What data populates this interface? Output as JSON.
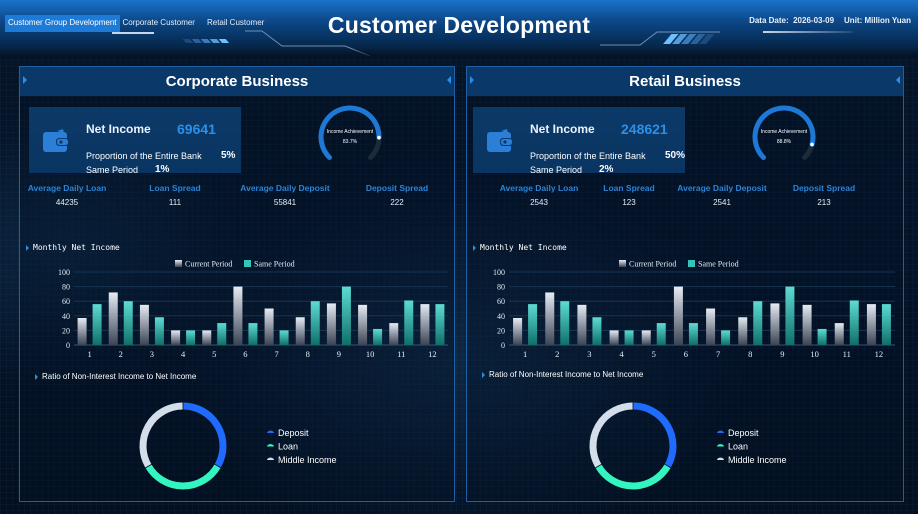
{
  "header": {
    "nav": [
      {
        "label": "Customer Group Development",
        "active": true
      },
      {
        "label": "Corporate Customer",
        "active": false
      },
      {
        "label": "Retail Customer",
        "active": false
      }
    ],
    "title": "Customer Development",
    "data_date_label": "Data Date:",
    "data_date": "2026-03-09",
    "unit": "Unit: Million Yuan"
  },
  "colors": {
    "accent_blue": "#2d8fe6",
    "panel_header": "#0a3868",
    "current_period": "#c9d1de",
    "same_period": "#35c4b8",
    "deposit": "#1f6bff",
    "loan": "#33f5c0",
    "middle_income": "#d4ddea"
  },
  "panels": [
    {
      "title": "Corporate Business",
      "net_income_label": "Net Income",
      "net_income_value": "69641",
      "proportion_label": "Proportion of the Entire Bank",
      "proportion_value": "5%",
      "same_period_label": "Same Period",
      "same_period_value": "1%",
      "gauge_label": "Income Achievement",
      "gauge_value": "83.7%",
      "stats": [
        {
          "label": "Average Daily Loan",
          "value": "44235"
        },
        {
          "label": "Loan Spread",
          "value": "111"
        },
        {
          "label": "Average Daily Deposit",
          "value": "55841"
        },
        {
          "label": "Deposit Spread",
          "value": "222"
        }
      ],
      "monthly_title": "Monthly Net Income",
      "ratio_title": "Ratio of Non-Interest Income to Net Income"
    },
    {
      "title": "Retail Business",
      "net_income_label": "Net Income",
      "net_income_value": "248621",
      "proportion_label": "Proportion of the Entire Bank",
      "proportion_value": "50%",
      "same_period_label": "Same Period",
      "same_period_value": "2%",
      "gauge_label": "Income Achievement",
      "gauge_value": "88.8%",
      "stats": [
        {
          "label": "Average Daily Loan",
          "value": "2543"
        },
        {
          "label": "Loan Spread",
          "value": "123"
        },
        {
          "label": "Average Daily Deposit",
          "value": "2541"
        },
        {
          "label": "Deposit Spread",
          "value": "213"
        }
      ],
      "monthly_title": "Monthly Net Income",
      "ratio_title": "Ratio of Non-Interest Income to Net Income"
    }
  ],
  "chart_data": [
    {
      "type": "bar",
      "title": "Monthly Net Income (Corporate Business)",
      "categories": [
        "1",
        "2",
        "3",
        "4",
        "5",
        "6",
        "7",
        "8",
        "9",
        "10",
        "11",
        "12"
      ],
      "series": [
        {
          "name": "Current Period",
          "values": [
            37,
            72,
            55,
            20,
            20,
            80,
            50,
            38,
            57,
            55,
            30,
            56
          ]
        },
        {
          "name": "Same Period",
          "values": [
            56,
            60,
            38,
            20,
            30,
            30,
            20,
            60,
            80,
            22,
            61,
            56
          ]
        }
      ],
      "ylim": [
        0,
        100
      ],
      "yticks": [
        0,
        20,
        40,
        60,
        80,
        100
      ],
      "legend_position": "top",
      "grid": true
    },
    {
      "type": "pie",
      "title": "Ratio of Non-Interest Income to Net Income (Corporate Business)",
      "labels": [
        "Deposit",
        "Loan",
        "Middle Income"
      ],
      "values": [
        33.3,
        33.3,
        33.4
      ],
      "donut": true,
      "legend_position": "right"
    },
    {
      "type": "bar",
      "title": "Monthly Net Income (Retail Business)",
      "categories": [
        "1",
        "2",
        "3",
        "4",
        "5",
        "6",
        "7",
        "8",
        "9",
        "10",
        "11",
        "12"
      ],
      "series": [
        {
          "name": "Current Period",
          "values": [
            37,
            72,
            55,
            20,
            20,
            80,
            50,
            38,
            57,
            55,
            30,
            56
          ]
        },
        {
          "name": "Same Period",
          "values": [
            56,
            60,
            38,
            20,
            30,
            30,
            20,
            60,
            80,
            22,
            61,
            56
          ]
        }
      ],
      "ylim": [
        0,
        100
      ],
      "yticks": [
        0,
        20,
        40,
        60,
        80,
        100
      ],
      "legend_position": "top",
      "grid": true
    },
    {
      "type": "pie",
      "title": "Ratio of Non-Interest Income to Net Income (Retail Business)",
      "labels": [
        "Deposit",
        "Loan",
        "Middle Income"
      ],
      "values": [
        33.3,
        33.3,
        33.4
      ],
      "donut": true,
      "legend_position": "right"
    },
    {
      "type": "gauge",
      "title": "Income Achievement",
      "values": {
        "Corporate Business": 83.7,
        "Retail Business": 88.8
      }
    }
  ]
}
